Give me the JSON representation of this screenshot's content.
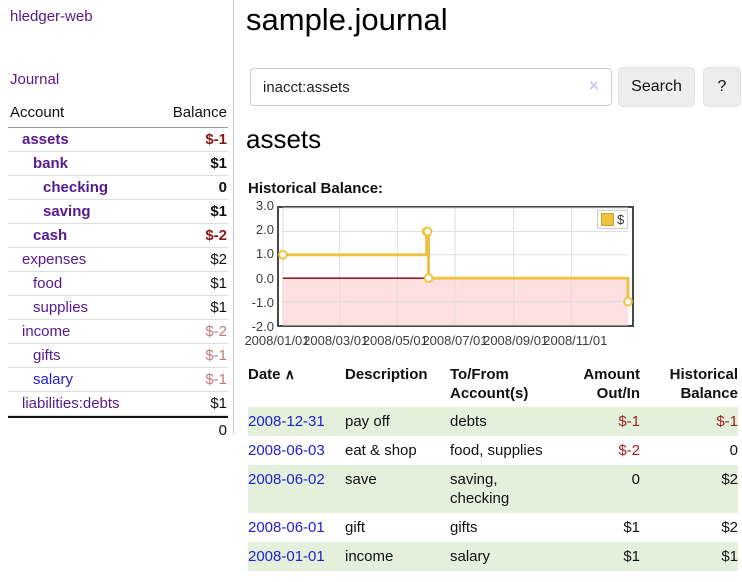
{
  "app": {
    "title": "hledger-web",
    "nav_journal": "Journal"
  },
  "sidebar": {
    "col_account": "Account",
    "col_balance": "Balance",
    "accounts": [
      {
        "name": "assets",
        "depth": 1,
        "balance": "$-1"
      },
      {
        "name": "bank",
        "depth": 2,
        "balance": "$1"
      },
      {
        "name": "checking",
        "depth": 3,
        "balance": "0"
      },
      {
        "name": "saving",
        "depth": 3,
        "balance": "$1"
      },
      {
        "name": "cash",
        "depth": 2,
        "balance": "$-2"
      },
      {
        "name": "expenses",
        "depth": 1,
        "balance": "$2"
      },
      {
        "name": "food",
        "depth": 2,
        "balance": "$1"
      },
      {
        "name": "supplies",
        "depth": 2,
        "balance": "$1"
      },
      {
        "name": "income",
        "depth": 1,
        "balance": "$-2"
      },
      {
        "name": "gifts",
        "depth": 2,
        "balance": "$-1"
      },
      {
        "name": "salary",
        "depth": 2,
        "balance": "$-1"
      },
      {
        "name": "liabilities:debts",
        "depth": 1,
        "balance": "$1"
      }
    ],
    "total": "0"
  },
  "main": {
    "title": "sample.journal",
    "search": {
      "value": "inacct:assets",
      "clear_icon": "×",
      "button": "Search",
      "help_button": "?"
    },
    "account_heading": "assets",
    "chart_label": "Historical Balance:"
  },
  "chart_data": {
    "type": "line",
    "title": "Historical Balance:",
    "series": [
      {
        "name": "$",
        "color": "#edc240",
        "steps": true,
        "points": [
          [
            "2008-01-01",
            1
          ],
          [
            "2008-06-01",
            2
          ],
          [
            "2008-06-02",
            2
          ],
          [
            "2008-06-03",
            0
          ],
          [
            "2008-12-31",
            -1
          ]
        ]
      }
    ],
    "xlim": [
      "2008-01-01",
      "2008-12-31"
    ],
    "ylim": [
      -2,
      3
    ],
    "x_ticks": [
      "2008/01/01",
      "2008/03/01",
      "2008/05/01",
      "2008/07/01",
      "2008/09/01",
      "2008/11/01"
    ],
    "y_ticks": [
      "3.0",
      "2.0",
      "1.0",
      "0.0",
      "-1.0",
      "-2.0"
    ],
    "grid": true,
    "legend_position": "top-right",
    "zero_line_color": "#7a0000",
    "negative_fill": "rgba(255,80,80,0.18)"
  },
  "register": {
    "sort_indicator": "∧",
    "headers": {
      "date": "Date",
      "description": "Description",
      "accounts": "To/From Account(s)",
      "amount": "Amount Out/In",
      "balance": "Historical Balance"
    },
    "rows": [
      {
        "date": "2008-12-31",
        "description": "pay off",
        "accounts": "debts",
        "amount": "$-1",
        "balance": "$-1"
      },
      {
        "date": "2008-06-03",
        "description": "eat & shop",
        "accounts": "food, supplies",
        "amount": "$-2",
        "balance": "0"
      },
      {
        "date": "2008-06-02",
        "description": "save",
        "accounts": "saving, checking",
        "amount": "0",
        "balance": "$2"
      },
      {
        "date": "2008-06-01",
        "description": "gift",
        "accounts": "gifts",
        "amount": "$1",
        "balance": "$2"
      },
      {
        "date": "2008-01-01",
        "description": "income",
        "accounts": "salary",
        "amount": "$1",
        "balance": "$1"
      }
    ]
  }
}
